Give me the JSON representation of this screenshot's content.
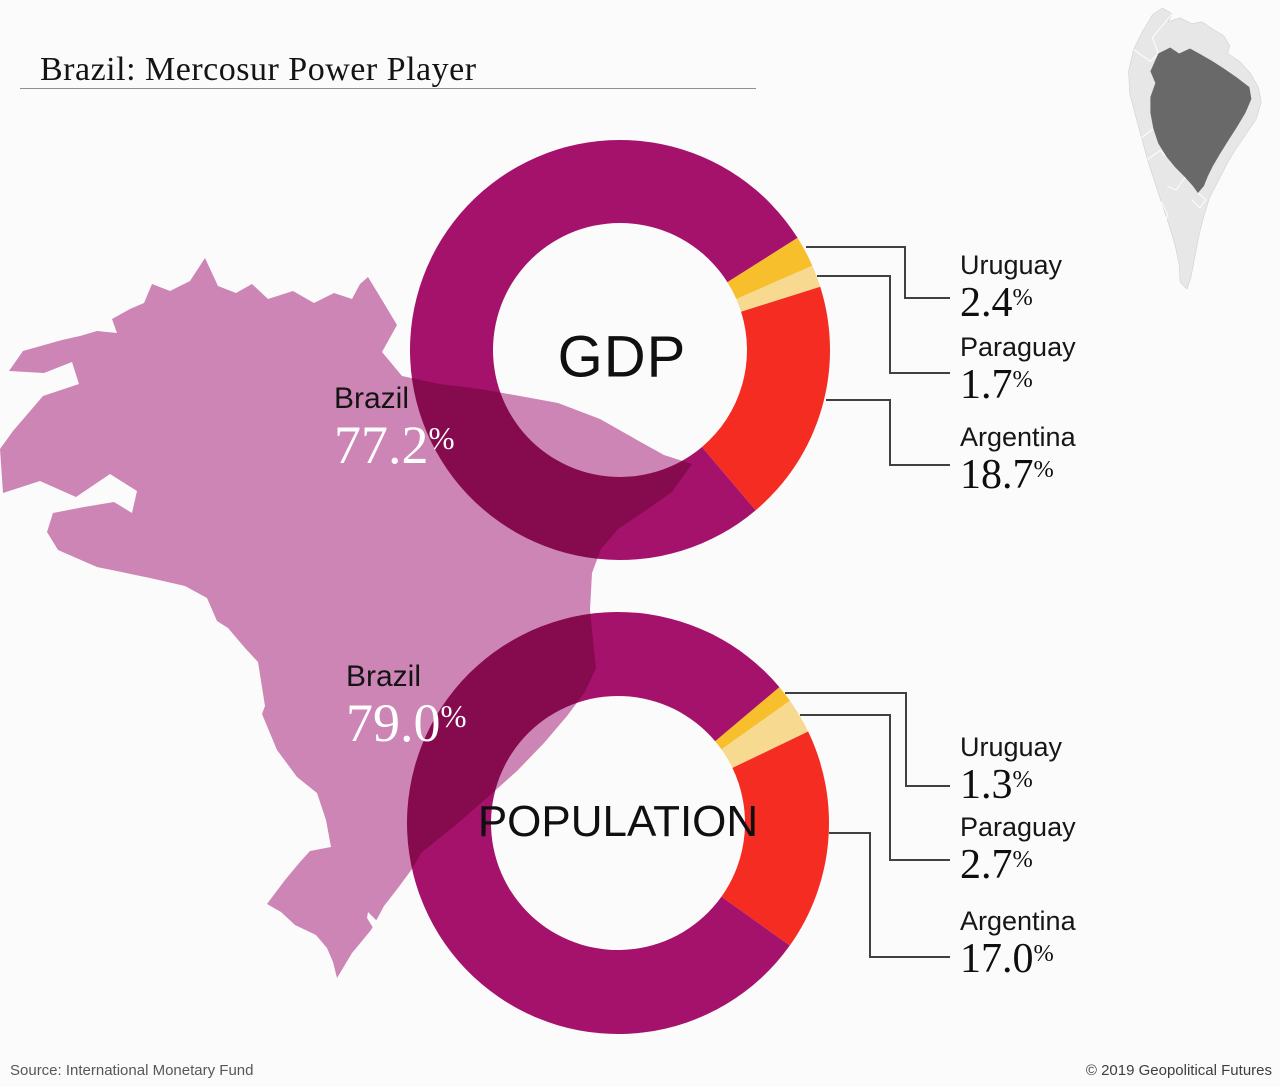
{
  "page": {
    "title": "Brazil: Mercosur Power Player"
  },
  "ui": {
    "percent_sign": "%"
  },
  "inset_map": {
    "region": "South America",
    "highlighted_country": "Brazil",
    "land_color": "#e7e7e7",
    "highlight_color": "#696969"
  },
  "map": {
    "country": "Brazil",
    "fill_color": "#cc85b5"
  },
  "footer": {
    "source": "Source: International Monetary Fund",
    "copyright": "© 2019 Geopolitical Futures"
  },
  "chart_data": [
    {
      "type": "pie",
      "id": "gdp",
      "center_label": "GDP",
      "units": "%",
      "rotation_deg_from_top": 57.7,
      "legend_position": "right-callouts",
      "slices": [
        {
          "label": "Uruguay",
          "value": 2.4,
          "pct": "2.4",
          "color": "#fbc22c"
        },
        {
          "label": "Paraguay",
          "value": 1.7,
          "pct": "1.7",
          "color": "#fbdd92"
        },
        {
          "label": "Argentina",
          "value": 18.7,
          "pct": "18.7",
          "color": "#f92c22"
        },
        {
          "label": "Brazil",
          "value": 77.2,
          "pct": "77.2",
          "color": "#a8126e"
        }
      ]
    },
    {
      "type": "pie",
      "id": "population",
      "center_label": "POPULATION",
      "units": "%",
      "rotation_deg_from_top": 49.9,
      "legend_position": "right-callouts",
      "slices": [
        {
          "label": "Uruguay",
          "value": 1.3,
          "pct": "1.3",
          "color": "#fbc22c"
        },
        {
          "label": "Paraguay",
          "value": 2.7,
          "pct": "2.7",
          "color": "#fbdd92"
        },
        {
          "label": "Argentina",
          "value": 17.0,
          "pct": "17.0",
          "color": "#f92c22"
        },
        {
          "label": "Brazil",
          "value": 79.0,
          "pct": "79.0",
          "color": "#a8126e"
        }
      ]
    }
  ]
}
